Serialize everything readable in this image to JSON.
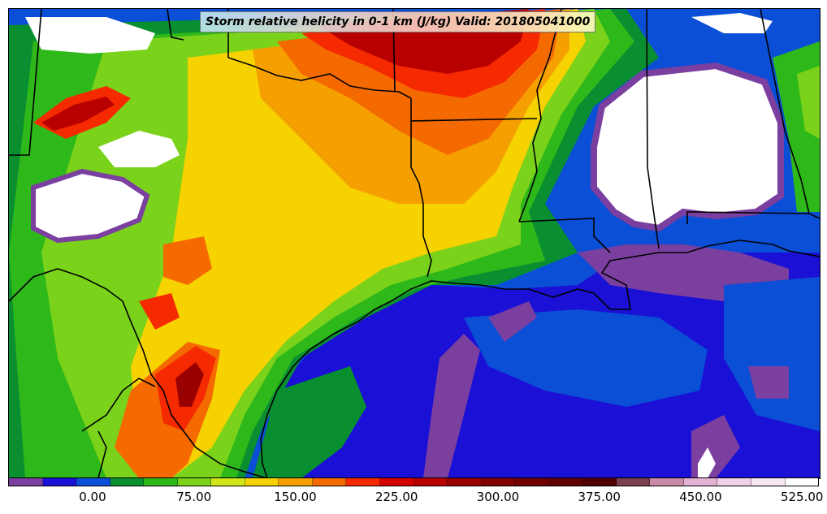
{
  "figure": {
    "title": "Storm relative helicity in 0-1 km (J/kg) Valid: 201805041000"
  },
  "colorbar": {
    "colors": [
      "#7b3fa0",
      "#1a10d6",
      "#0a4fd6",
      "#0a8f30",
      "#2fb81a",
      "#7ad21a",
      "#d2e61a",
      "#f5d200",
      "#f5a000",
      "#f56a00",
      "#f52a00",
      "#d60000",
      "#b80000",
      "#9a0000",
      "#800000",
      "#700000",
      "#600000",
      "#500000",
      "#7a4050",
      "#c98aa8",
      "#e2b2d2",
      "#f0d0e6",
      "#f8e6f2",
      "#ffffff"
    ],
    "tick_labels": [
      "0.00",
      "75.00",
      "150.00",
      "225.00",
      "300.00",
      "375.00",
      "450.00",
      "525.00"
    ]
  },
  "map": {
    "field": "storm relative helicity",
    "features": [
      "state-borders",
      "coastline",
      "gulf-of-mexico",
      "texas",
      "louisiana",
      "mississippi",
      "alabama",
      "oklahoma",
      "arkansas",
      "mexico"
    ]
  }
}
